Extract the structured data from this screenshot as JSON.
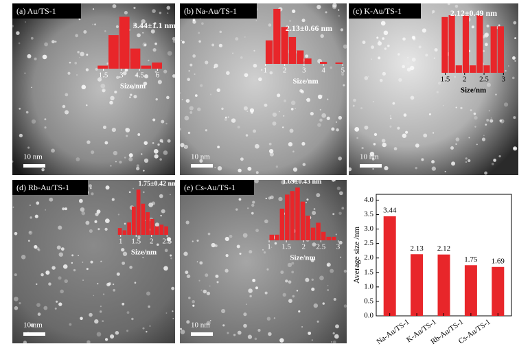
{
  "chart_data": [
    {
      "type": "histogram",
      "title": "(a)  Au/TS-1",
      "annotation": "3.44±1.1 nm",
      "xlabel": "Size/nm",
      "scale_bar": "10 nm",
      "bins": [
        1.0,
        1.9,
        2.8,
        3.7,
        4.6,
        5.5,
        6.4
      ],
      "values": [
        5,
        55,
        85,
        33,
        5,
        10
      ],
      "color": "#e8262a",
      "xlim": [
        0.9,
        7.0
      ],
      "ylim": [
        0,
        90
      ],
      "xticks": [
        1.5,
        3.0,
        4.5,
        6.0
      ]
    },
    {
      "type": "histogram",
      "title": "(b)  Na-Au/TS-1",
      "annotation": "2.13±0.66 nm",
      "xlabel": "Size/nm",
      "scale_bar": "10 nm",
      "bins": [
        1.0,
        1.4,
        1.8,
        2.2,
        2.6,
        3.0,
        3.4,
        3.8,
        4.2,
        4.6,
        5.0
      ],
      "values": [
        35,
        82,
        55,
        40,
        20,
        8,
        0,
        3,
        0,
        2
      ],
      "color": "#e8262a",
      "xlim": [
        0.95,
        5.2
      ],
      "ylim": [
        0,
        85
      ],
      "xticks": [
        1,
        2,
        3,
        4,
        5
      ]
    },
    {
      "type": "histogram",
      "title": "(c)  K-Au/TS-1",
      "annotation": "2.12±0.49 nm",
      "xlabel": "Size/nm",
      "scale_bar": "10 nm",
      "bins": [
        1.4,
        1.58,
        1.76,
        1.94,
        2.12,
        2.3,
        2.48,
        2.66,
        2.84,
        3.02
      ],
      "values": [
        60,
        62,
        8,
        62,
        8,
        62,
        8,
        50,
        50
      ],
      "color": "#e8262a",
      "xlim": [
        1.35,
        3.1
      ],
      "ylim": [
        0,
        68
      ],
      "xticks": [
        1.5,
        2.0,
        2.5,
        3.0
      ]
    },
    {
      "type": "histogram",
      "title": "(d)  Rb-Au/TS-1",
      "annotation": "1.75±0.42 nm",
      "xlabel": "Size/nm",
      "scale_bar": "10 nm",
      "bins": [
        0.9,
        1.05,
        1.2,
        1.35,
        1.5,
        1.65,
        1.8,
        1.95,
        2.1,
        2.25,
        2.4,
        2.55
      ],
      "values": [
        12,
        8,
        22,
        50,
        80,
        55,
        40,
        28,
        15,
        18,
        15
      ],
      "color": "#e8262a",
      "xlim": [
        0.85,
        2.65
      ],
      "ylim": [
        0,
        85
      ],
      "xticks": [
        1.0,
        1.5,
        2.0,
        2.5
      ]
    },
    {
      "type": "histogram",
      "title": "(e)  Cs-Au/TS-1",
      "annotation": "1.69±0.43 nm",
      "xlabel": "Size/nm",
      "scale_bar": "10 nm",
      "bins": [
        1.0,
        1.15,
        1.3,
        1.45,
        1.6,
        1.75,
        1.9,
        2.05,
        2.2,
        2.35,
        2.5,
        2.65,
        2.8,
        2.95
      ],
      "values": [
        8,
        8,
        45,
        65,
        70,
        75,
        55,
        35,
        18,
        25,
        12,
        5,
        5
      ],
      "color": "#e8262a",
      "xlim": [
        0.9,
        3.05
      ],
      "ylim": [
        0,
        80
      ],
      "xticks": [
        1.0,
        1.5,
        2.0,
        2.5,
        3.0
      ]
    },
    {
      "type": "bar",
      "ylabel": "Average size /nm",
      "categories": [
        null,
        "Na-Au/TS-1",
        "K-Au/TS-1",
        "Rb-Au/TS-1",
        "Cs-Au/TS-1"
      ],
      "values": [
        3.44,
        2.13,
        2.12,
        1.75,
        1.69
      ],
      "color": "#e8262a",
      "ylim": [
        0,
        4.2
      ],
      "yticks": [
        {
          "value": 0,
          "label": "0.0"
        },
        {
          "value": 0.5,
          "label": "0.5"
        },
        {
          "value": 1,
          "label": "1.0"
        },
        {
          "value": 1.5,
          "label": "1.5"
        },
        {
          "value": 2,
          "label": "2.0"
        },
        {
          "value": 2.5,
          "label": "2.5"
        },
        {
          "value": 3,
          "label": "3.0"
        },
        {
          "value": 3.5,
          "label": "3.5"
        },
        {
          "value": 4,
          "label": "4.0"
        }
      ]
    }
  ]
}
